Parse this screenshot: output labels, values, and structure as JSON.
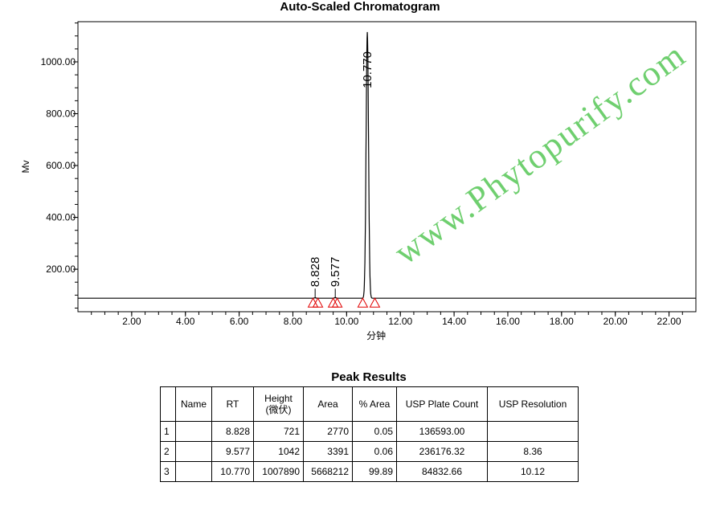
{
  "chart_data": {
    "type": "line",
    "title": "Auto-Scaled Chromatogram",
    "xlabel": "分钟",
    "ylabel": "Mv",
    "xlim": [
      0,
      23
    ],
    "ylim": [
      36,
      1155
    ],
    "x_ticks": [
      "2.00",
      "4.00",
      "6.00",
      "8.00",
      "10.00",
      "12.00",
      "14.00",
      "16.00",
      "18.00",
      "20.00",
      "22.00"
    ],
    "y_ticks": [
      "200.00",
      "400.00",
      "600.00",
      "800.00",
      "1000.00"
    ],
    "baseline": 88,
    "peaks": [
      {
        "label": "8.828",
        "rt": 8.828,
        "apex": 90,
        "markers": [
          8.75,
          8.93
        ]
      },
      {
        "label": "9.577",
        "rt": 9.577,
        "apex": 91,
        "markers": [
          9.5,
          9.65
        ]
      },
      {
        "label": "10.770",
        "rt": 10.77,
        "apex": 1115,
        "markers": [
          10.6,
          11.05
        ]
      }
    ],
    "marker_color": "#e00000",
    "line_color": "#000000",
    "grid": false
  },
  "table": {
    "title": "Peak Results",
    "headers": [
      "",
      "Name",
      "RT",
      "Height\n(微伏)",
      "Area",
      "% Area",
      "USP Plate Count",
      "USP Resolution"
    ],
    "rows": [
      [
        "1",
        "",
        "8.828",
        "721",
        "2770",
        "0.05",
        "136593.00",
        ""
      ],
      [
        "2",
        "",
        "9.577",
        "1042",
        "3391",
        "0.06",
        "236176.32",
        "8.36"
      ],
      [
        "3",
        "",
        "10.770",
        "1007890",
        "5668212",
        "99.89",
        "84832.66",
        "10.12"
      ]
    ]
  },
  "watermark": "www.Phytopurify.com",
  "watermark_color": "#3fbf3f"
}
